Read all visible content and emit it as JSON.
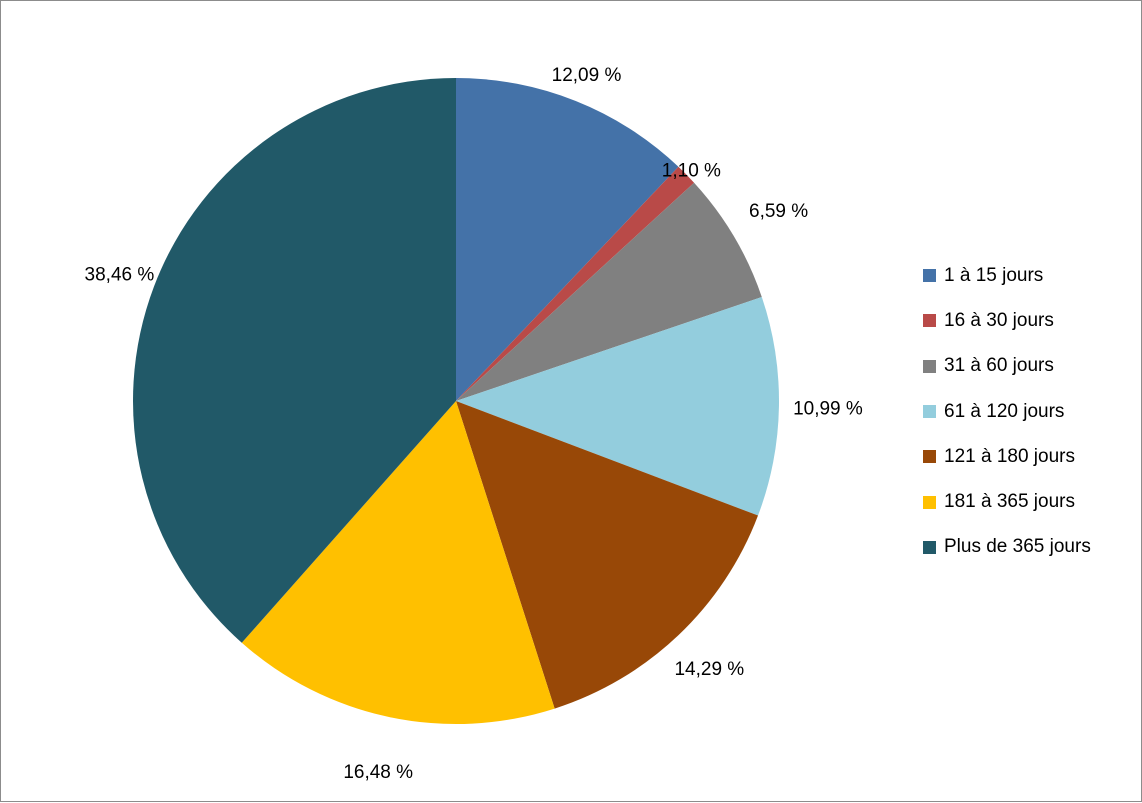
{
  "chart_data": {
    "type": "pie",
    "categories": [
      "1 à 15 jours",
      "16 à 30 jours",
      "31 à 60 jours",
      "61 à 120 jours",
      "121 à 180 jours",
      "181 à 365 jours",
      "Plus de 365 jours"
    ],
    "values": [
      12.09,
      1.1,
      6.59,
      10.99,
      14.29,
      16.48,
      38.46
    ],
    "data_labels": [
      "12,09 %",
      "1,10 %",
      "6,59 %",
      "10,99 %",
      "14,29 %",
      "16,48 %",
      "38,46 %"
    ],
    "colors": [
      "#4472A8",
      "#B94A48",
      "#808080",
      "#93CDDD",
      "#984807",
      "#FFC000",
      "#215968"
    ],
    "legend_position": "right",
    "start_angle": "top",
    "direction": "clockwise"
  }
}
